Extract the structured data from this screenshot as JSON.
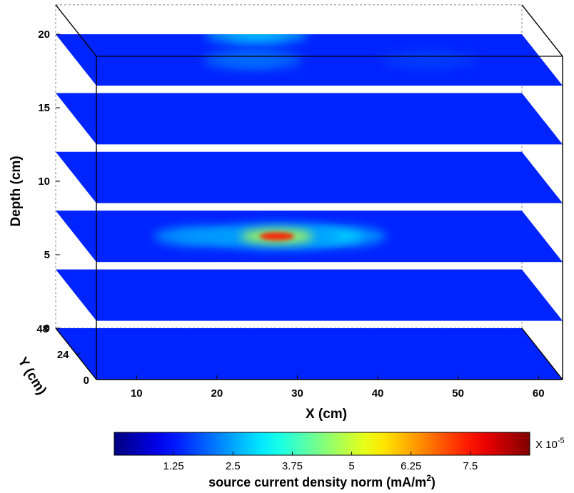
{
  "chart_data": {
    "type": "heatmap",
    "description_type": "3d-stacked-slices",
    "title": "",
    "xlabel": "X (cm)",
    "ylabel": "Y (cm)",
    "zlabel": "Depth (cm)",
    "x_ticks": [
      "10",
      "20",
      "30",
      "40",
      "50",
      "60"
    ],
    "x_tick_values": [
      10,
      20,
      30,
      40,
      50,
      60
    ],
    "y_ticks": [
      "0",
      "24",
      "48"
    ],
    "y_tick_values": [
      0,
      24,
      48
    ],
    "z_ticks": [
      "0",
      "5",
      "10",
      "15",
      "20"
    ],
    "z_tick_values": [
      0,
      5,
      10,
      15,
      20
    ],
    "xlim": [
      5,
      63
    ],
    "ylim": [
      0,
      48
    ],
    "zlim": [
      0,
      22
    ],
    "slice_depths": [
      0,
      4,
      8,
      12,
      16,
      20
    ],
    "hotspots": [
      {
        "depth": 20,
        "x": 30,
        "y": 48,
        "value": 2.6
      },
      {
        "depth": 20,
        "x": 27,
        "y": 24,
        "value": 2.0
      },
      {
        "depth": 20,
        "x": 49,
        "y": 24,
        "value": 1.6
      },
      {
        "depth": 20,
        "x": 38,
        "y": 24,
        "value": 1.2
      },
      {
        "depth": 12,
        "x": 40,
        "y": 24,
        "value": 1.4
      },
      {
        "depth": 12,
        "x": 33,
        "y": 40,
        "value": 0.9
      },
      {
        "depth": 8,
        "x": 30,
        "y": 24,
        "value": 7.5
      },
      {
        "depth": 8,
        "x": 37,
        "y": 24,
        "value": 3.0
      },
      {
        "depth": 8,
        "x": 21,
        "y": 24,
        "value": 2.4
      },
      {
        "depth": 8,
        "x": 26,
        "y": 40,
        "value": 1.0
      },
      {
        "depth": 4,
        "x": 30,
        "y": 24,
        "value": 1.0
      },
      {
        "depth": 16,
        "x": 40,
        "y": 24,
        "value": 0.8
      }
    ],
    "colorbar": {
      "label": "source current density norm (mA/m",
      "label_superscript": "2",
      "label_end": ")",
      "multiplier_text": "X 10",
      "multiplier_exp": "-5",
      "range": [
        0,
        8.75
      ],
      "ticks": [
        "1.25",
        "2.5",
        "3.75",
        "5",
        "6.25",
        "7.5"
      ],
      "tick_values": [
        1.25,
        2.5,
        3.75,
        5,
        6.25,
        7.5
      ],
      "colormap": "jet"
    }
  }
}
